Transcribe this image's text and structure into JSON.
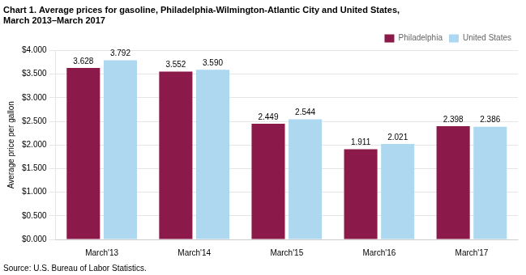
{
  "chart_data": {
    "type": "bar",
    "title": [
      "Chart 1. Average prices for gasoline, Philadelphia-Wilmington-Atlantic City and United States,",
      "March 2013–March 2017"
    ],
    "ylabel": "Average price per gallon",
    "source": "Source: U.S. Bureau of Labor Statistics.",
    "categories": [
      "March'13",
      "March'14",
      "March'15",
      "March'16",
      "March'17"
    ],
    "series": [
      {
        "name": "Philadelphia",
        "color": "#8B1A4A",
        "values": [
          3.628,
          3.552,
          2.449,
          1.911,
          2.398
        ],
        "value_labels": [
          "3.628",
          "3.552",
          "2.449",
          "1.911",
          "2.398"
        ]
      },
      {
        "name": "United States",
        "color": "#ADD8F0",
        "values": [
          3.792,
          3.59,
          2.544,
          2.021,
          2.386
        ],
        "value_labels": [
          "3.792",
          "3.590",
          "2.544",
          "2.021",
          "2.386"
        ]
      }
    ],
    "ylim": [
      0,
      4.0
    ],
    "yticks": [
      {
        "value": 0.0,
        "label": "$0.000"
      },
      {
        "value": 0.5,
        "label": "$0.500"
      },
      {
        "value": 1.0,
        "label": "$1.000"
      },
      {
        "value": 1.5,
        "label": "$1.500"
      },
      {
        "value": 2.0,
        "label": "$2.000"
      },
      {
        "value": 2.5,
        "label": "$2.500"
      },
      {
        "value": 3.0,
        "label": "$3.000"
      },
      {
        "value": 3.5,
        "label": "$3.500"
      },
      {
        "value": 4.0,
        "label": "$4.000"
      }
    ],
    "grid": true,
    "legend": "upper right",
    "data_labels": true
  }
}
